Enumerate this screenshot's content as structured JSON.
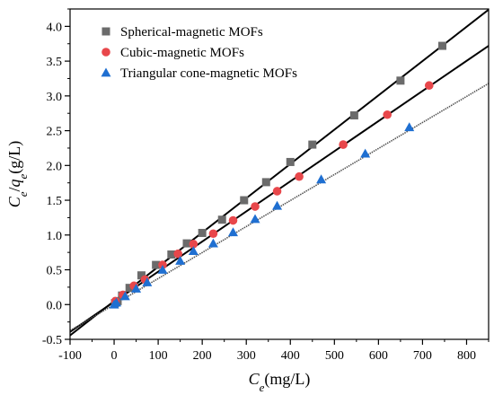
{
  "chart_data": {
    "type": "scatter",
    "title": "",
    "xlabel": {
      "main": "C",
      "sub": "e",
      "unit": "(mg/L)"
    },
    "ylabel": {
      "main1": "C",
      "sub1": "e",
      "sep": "/",
      "main2": "q",
      "sub2": "e",
      "unit": "(g/L)"
    },
    "xlim": [
      -100,
      850
    ],
    "ylim": [
      -0.5,
      4.25
    ],
    "xticks": [
      -100,
      0,
      100,
      200,
      300,
      400,
      500,
      600,
      700,
      800
    ],
    "yticks": [
      -0.5,
      0.0,
      0.5,
      1.0,
      1.5,
      2.0,
      2.5,
      3.0,
      3.5,
      4.0
    ],
    "ytick_labels": [
      "-0.5",
      "0.0",
      "0.5",
      "1.0",
      "1.5",
      "2.0",
      "2.5",
      "3.0",
      "3.5",
      "4.0"
    ],
    "legend_position": "top-left",
    "series": [
      {
        "name": "Spherical-magnetic MOFs",
        "marker": "square",
        "color": "#6b6b6b",
        "line_color": "#000000",
        "line_style": "solid",
        "fit": {
          "slope": 0.00493,
          "intercept": 0.05
        },
        "x": [
          2,
          8,
          18,
          35,
          62,
          95,
          130,
          165,
          200,
          245,
          295,
          345,
          400,
          450,
          545,
          650,
          745
        ],
        "y": [
          0.02,
          0.05,
          0.13,
          0.24,
          0.42,
          0.57,
          0.72,
          0.88,
          1.03,
          1.22,
          1.5,
          1.76,
          2.05,
          2.3,
          2.72,
          3.22,
          3.72
        ]
      },
      {
        "name": "Cubic-magnetic MOFs",
        "marker": "circle",
        "color": "#e8474b",
        "line_color": "#000000",
        "line_style": "solid",
        "fit": {
          "slope": 0.00433,
          "intercept": 0.04
        },
        "x": [
          3,
          20,
          45,
          70,
          110,
          145,
          180,
          225,
          270,
          320,
          370,
          420,
          520,
          620,
          715
        ],
        "y": [
          0.05,
          0.14,
          0.27,
          0.36,
          0.57,
          0.73,
          0.87,
          1.02,
          1.21,
          1.41,
          1.63,
          1.84,
          2.3,
          2.73,
          3.15
        ]
      },
      {
        "name": "Triangular cone-magnetic MOFs",
        "marker": "triangle",
        "color": "#1f6fd1",
        "line_color": "#555555",
        "line_style": "dotted",
        "fit": {
          "slope": 0.00374,
          "intercept": 0.0
        },
        "x": [
          0,
          5,
          25,
          50,
          75,
          110,
          150,
          180,
          225,
          270,
          320,
          370,
          470,
          570,
          670
        ],
        "y": [
          0.0,
          0.03,
          0.12,
          0.23,
          0.32,
          0.5,
          0.63,
          0.77,
          0.88,
          1.04,
          1.23,
          1.42,
          1.8,
          2.17,
          2.55
        ]
      }
    ]
  }
}
